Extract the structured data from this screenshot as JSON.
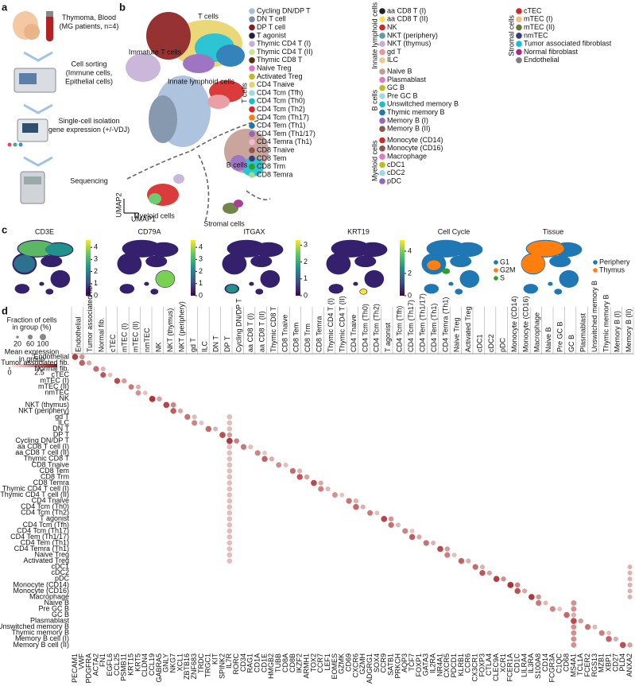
{
  "panel_labels": [
    "a",
    "b",
    "c",
    "d"
  ],
  "panel_a": {
    "steps": [
      {
        "lines": [
          "Thymoma, Blood",
          "(MG patients, n=4)"
        ]
      },
      {
        "lines": [
          "Cell sorting",
          "(Immune cells,",
          "Epithelial cells)"
        ]
      },
      {
        "lines": [
          "Single-cell isolation",
          "gene expression (+/-VDJ)"
        ]
      },
      {
        "lines": [
          "Sequencing"
        ]
      }
    ]
  },
  "panel_b": {
    "cluster_labels": [
      "T cells",
      "Immature T cells",
      "Innate lymphoid cells",
      "B cells",
      "Myeloid cells",
      "Stromal cells"
    ],
    "x_label": "UMAP1",
    "y_label": "UMAP2",
    "legend": [
      {
        "group": "T cells",
        "items": [
          {
            "name": "Cycling DN/DP T",
            "color": "#a6bddb"
          },
          {
            "name": "DN T cell",
            "color": "#7b8fa6"
          },
          {
            "name": "DP T cell",
            "color": "#8c1c1c"
          },
          {
            "name": "T agonist",
            "color": "#1f1f3f"
          },
          {
            "name": "Thymic CD4 T (I)",
            "color": "#c5b0d5"
          },
          {
            "name": "Thymic CD4 T (II)",
            "color": "#c9e59b"
          },
          {
            "name": "Thymic CD8 T",
            "color": "#5a2d0c"
          },
          {
            "name": "Naive Treg",
            "color": "#e377c2"
          },
          {
            "name": "Activated Treg",
            "color": "#bcbd22"
          },
          {
            "name": "CD4 Tnaive",
            "color": "#e8d36a"
          },
          {
            "name": "CD4 Tcm (Tfh)",
            "color": "#9edae5"
          },
          {
            "name": "CD4 Tcm (Th0)",
            "color": "#17becf"
          },
          {
            "name": "CD4 Tcm (Th2)",
            "color": "#d62728"
          },
          {
            "name": "CD4 Tcm (Th17)",
            "color": "#ff7f0e"
          },
          {
            "name": "CD4 Tem (Th1)",
            "color": "#1f77b4"
          },
          {
            "name": "CD4 Tem (Th1/17)",
            "color": "#9467bd"
          },
          {
            "name": "CD4 Temra (Th1)",
            "color": "#f7b6d2"
          },
          {
            "name": "CD8 Tnaive",
            "color": "#8c564b"
          },
          {
            "name": "CD8 Tem",
            "color": "#393b79"
          },
          {
            "name": "CD8 Trm",
            "color": "#2ca02c"
          },
          {
            "name": "CD8 Temra",
            "color": "#98df8a"
          }
        ]
      },
      {
        "group": "Innate lymphoid cells",
        "items": [
          {
            "name": "aa CD8 T (I)",
            "color": "#222222"
          },
          {
            "name": "aa CD8 T (II)",
            "color": "#ffdd57"
          },
          {
            "name": "NK",
            "color": "#d62728"
          },
          {
            "name": "NKT (periphery)",
            "color": "#5f9ea0"
          },
          {
            "name": "NKT (thymus)",
            "color": "#c5b0d5"
          },
          {
            "name": "gd T",
            "color": "#e7969c"
          },
          {
            "name": "ILC",
            "color": "#e7cb94"
          }
        ]
      },
      {
        "group": "B cells",
        "items": [
          {
            "name": "Naive B",
            "color": "#c49c94"
          },
          {
            "name": "Plasmablast",
            "color": "#e377c2"
          },
          {
            "name": "GC B",
            "color": "#bcbd22"
          },
          {
            "name": "Pre GC B",
            "color": "#9edae5"
          },
          {
            "name": "Unswitched memory B",
            "color": "#17becf"
          },
          {
            "name": "Thymic memory B",
            "color": "#1f77b4"
          },
          {
            "name": "Memory B (I)",
            "color": "#9467bd"
          },
          {
            "name": "Memory B (II)",
            "color": "#8c564b"
          }
        ]
      },
      {
        "group": "Myeloid cells",
        "items": [
          {
            "name": "Monocyte (CD14)",
            "color": "#d62728"
          },
          {
            "name": "Monocyte (CD16)",
            "color": "#8c564b"
          },
          {
            "name": "Macrophage",
            "color": "#e377c2"
          },
          {
            "name": "cDC1",
            "color": "#bcbd22"
          },
          {
            "name": "cDC2",
            "color": "#9edae5"
          },
          {
            "name": "pDC",
            "color": "#9467bd"
          }
        ]
      },
      {
        "group": "Stromal cells",
        "items": [
          {
            "name": "cTEC",
            "color": "#d62728"
          },
          {
            "name": "mTEC (I)",
            "color": "#ffbb78"
          },
          {
            "name": "mTEC (II)",
            "color": "#637939"
          },
          {
            "name": "nmTEC",
            "color": "#393b79"
          },
          {
            "name": "Tumor associated fibroblast",
            "color": "#17becf"
          },
          {
            "name": "Normal fibroblast",
            "color": "#a02c8d"
          },
          {
            "name": "Endothelial",
            "color": "#7f7f7f"
          }
        ]
      }
    ]
  },
  "panel_c": {
    "features": [
      {
        "title": "CD3E",
        "lim": [
          0,
          4.6
        ],
        "ticks": [
          0,
          1,
          2,
          3,
          4
        ]
      },
      {
        "title": "CD79A",
        "lim": [
          0,
          4.6
        ],
        "ticks": [
          0,
          1,
          2,
          3,
          4
        ]
      },
      {
        "title": "ITGAX",
        "lim": [
          0,
          3.3
        ],
        "ticks": [
          0,
          1,
          2,
          3
        ]
      },
      {
        "title": "KRT19",
        "lim": [
          0,
          5
        ],
        "ticks": [
          0,
          2,
          4
        ]
      }
    ],
    "categorical": [
      {
        "title": "Cell Cycle",
        "items": [
          {
            "name": "G1",
            "color": "#1f77b4"
          },
          {
            "name": "G2M",
            "color": "#ff7f0e"
          },
          {
            "name": "S",
            "color": "#2ca02c"
          }
        ]
      },
      {
        "title": "Tissue",
        "items": [
          {
            "name": "Periphery",
            "color": "#1f77b4"
          },
          {
            "name": "Thymus",
            "color": "#ff7f0e"
          }
        ]
      }
    ]
  },
  "panel_d": {
    "size_legend": {
      "title": [
        "Fraction of cells",
        "in group (%)"
      ],
      "ticks": [
        20,
        60,
        100
      ]
    },
    "color_legend": {
      "title": [
        "Mean expression",
        "in group"
      ],
      "lim": [
        0,
        4
      ],
      "ticks": [
        0,
        2.5
      ]
    },
    "columns": [
      "Endothelial",
      "Tumor associated fib.",
      "Normal fib.",
      "cTEC",
      "mTEC (I)",
      "mTEC (II)",
      "nmTEC",
      "NK",
      "NKT (thymus)",
      "NKT (periphery)",
      "gd T",
      "ILC",
      "DN T",
      "DP T",
      "Cycling DN/DP T",
      "aa CD8 T (I)",
      "aa CD8 T (II)",
      "Thymic CD8 T",
      "CD8 Tnaive",
      "CD8 Tem",
      "CD8 Trm",
      "CD8 Temra",
      "Thymic CD4 T (I)",
      "Thymic CD4 T (II)",
      "CD4 Tnaive",
      "CD4 Tcm (Th0)",
      "CD4 Tcm (Th2)",
      "T agonist",
      "CD4 Tcm (Tfh)",
      "CD4 Tcm (Th17)",
      "CD4 Tem (Th1/17)",
      "CD4 Tem (Th1)",
      "CD4 Temra (Th1)",
      "Naive Treg",
      "Activated Treg",
      "cDC1",
      "cDC2",
      "pDC",
      "Monocyte (CD14)",
      "Monocyte (CD16)",
      "Macrophage",
      "Naive B",
      "Pre GC B",
      "GC B",
      "Plasmablast",
      "Unswitched memory B",
      "Thymic memory B",
      "Memory B (I)",
      "Memory B (II)"
    ],
    "rows": [
      "Endothelial",
      "Tumor associated fib.",
      "Normal fib.",
      "cTEC",
      "mTEC (I)",
      "mTEC (II)",
      "nmTEC",
      "NK",
      "NKT (thymus)",
      "NKT (periphery)",
      "gd T",
      "ILC",
      "DN T",
      "DP T",
      "Cycling DN/DP T",
      "aa CD8 T cell (I)",
      "aa CD8 T cell (II)",
      "Thymic CD8 T",
      "CD8 Tnaive",
      "CD8 Tem",
      "CD8 Trm",
      "CD8 Temra",
      "Thymic CD4 T cell (I)",
      "Thymic CD4 T cell (II)",
      "CD4 Tnaive",
      "CD4 Tcm (Th0)",
      "CD4 Tcm (Th2)",
      "T agonist",
      "CD4 Tcm (Tfh)",
      "CD4 Tcm (Th17)",
      "CD4 Tem (Th1/17)",
      "CD4 Tem (Th1)",
      "CD4 Temra (Th1)",
      "Naive Treg",
      "Activated Treg",
      "cDC1",
      "cDC2",
      "pDC",
      "Monocyte (CD14)",
      "Monocyte (CD16)",
      "Macrophage",
      "Naive B",
      "Pre GC B",
      "GC B",
      "Plasmablast",
      "Unswitched memory B",
      "Thymic memory B",
      "Memory B cell (I)",
      "Memory B cell (II)"
    ],
    "genes": [
      "PECAM1",
      "VWF",
      "PDGFRA",
      "ACTA2",
      "FN1",
      "EGFL6",
      "CCL25",
      "PSMB11",
      "KRT15",
      "KRT5",
      "CLDN4",
      "CCL19",
      "GABRA5",
      "GNLY",
      "NKG7",
      "XCL1",
      "ZBTB16",
      "ZNF683",
      "TRDC",
      "TRGC1",
      "KIT",
      "SPINK2",
      "IL7R",
      "RORC",
      "CD34",
      "RAG1",
      "CD1A",
      "CD1E",
      "HMGB2",
      "TUBB",
      "CD8A",
      "CD8B",
      "IKZF2",
      "ARMH1",
      "TOX2",
      "CCR7",
      "LEF1",
      "EOMES",
      "GZMK",
      "CD69",
      "CXCR6",
      "GZMH",
      "ADGRG1",
      "SOX4",
      "CCR9",
      "SATB1",
      "PRKCH",
      "AQP3",
      "TCF7",
      "FOXP1",
      "GATA3",
      "IL2RA",
      "NR4A1",
      "CXCR5",
      "PDCD1",
      "KLRB1",
      "CCR6",
      "CX3CR1",
      "FOXP3",
      "CTLA4",
      "CLEC9A",
      "XCR1",
      "FCER1A",
      "CD1C",
      "LILRA4",
      "IL3RA",
      "S100A8",
      "CD14",
      "FCGR3A",
      "C1QC",
      "CD68",
      "MS4A1",
      "TCL1A",
      "FCER2",
      "RGS13",
      "MZB1",
      "XBP1",
      "CD27",
      "PLD4",
      "ANXA2"
    ],
    "dots": [
      [
        0,
        0,
        90,
        3.2
      ],
      [
        0,
        1,
        60,
        1.8
      ],
      [
        1,
        1,
        85,
        2.6
      ],
      [
        1,
        2,
        55,
        1.4
      ],
      [
        2,
        3,
        80,
        2.4
      ],
      [
        2,
        4,
        50,
        1.2
      ],
      [
        3,
        4,
        75,
        2.8
      ],
      [
        3,
        5,
        45,
        1.0
      ],
      [
        4,
        6,
        85,
        3.0
      ],
      [
        4,
        7,
        60,
        1.6
      ],
      [
        5,
        8,
        70,
        2.2
      ],
      [
        5,
        9,
        50,
        1.3
      ],
      [
        6,
        9,
        65,
        1.8
      ],
      [
        6,
        10,
        45,
        0.9
      ],
      [
        7,
        11,
        95,
        3.4
      ],
      [
        7,
        12,
        60,
        1.5
      ],
      [
        8,
        13,
        90,
        3.1
      ],
      [
        8,
        14,
        65,
        2.0
      ],
      [
        9,
        14,
        85,
        2.7
      ],
      [
        9,
        15,
        55,
        1.4
      ],
      [
        10,
        16,
        80,
        2.3
      ],
      [
        10,
        17,
        50,
        1.1
      ],
      [
        11,
        17,
        75,
        2.0
      ],
      [
        11,
        18,
        45,
        0.9
      ],
      [
        12,
        19,
        85,
        2.5
      ],
      [
        12,
        20,
        50,
        1.2
      ],
      [
        13,
        21,
        90,
        2.9
      ],
      [
        13,
        22,
        60,
        1.6
      ],
      [
        14,
        22,
        95,
        3.3
      ],
      [
        14,
        23,
        65,
        2.1
      ],
      [
        15,
        24,
        80,
        2.2
      ],
      [
        15,
        25,
        50,
        1.0
      ],
      [
        16,
        26,
        75,
        2.0
      ],
      [
        16,
        27,
        45,
        0.8
      ],
      [
        17,
        27,
        85,
        2.6
      ],
      [
        17,
        28,
        55,
        1.3
      ],
      [
        18,
        29,
        70,
        1.9
      ],
      [
        18,
        30,
        50,
        1.0
      ],
      [
        19,
        31,
        80,
        2.4
      ],
      [
        19,
        32,
        55,
        1.2
      ],
      [
        20,
        32,
        85,
        2.8
      ],
      [
        20,
        33,
        60,
        1.5
      ],
      [
        21,
        34,
        90,
        3.0
      ],
      [
        21,
        35,
        55,
        1.4
      ],
      [
        22,
        35,
        75,
        2.1
      ],
      [
        22,
        36,
        50,
        1.1
      ],
      [
        23,
        37,
        70,
        1.8
      ],
      [
        23,
        38,
        45,
        0.9
      ],
      [
        24,
        39,
        80,
        2.3
      ],
      [
        24,
        40,
        55,
        1.2
      ],
      [
        25,
        40,
        85,
        2.5
      ],
      [
        25,
        41,
        50,
        1.3
      ],
      [
        26,
        42,
        75,
        2.2
      ],
      [
        26,
        43,
        45,
        1.0
      ],
      [
        27,
        44,
        90,
        3.1
      ],
      [
        27,
        45,
        60,
        1.7
      ],
      [
        28,
        45,
        80,
        2.4
      ],
      [
        28,
        46,
        50,
        1.1
      ],
      [
        29,
        47,
        75,
        2.0
      ],
      [
        29,
        48,
        45,
        0.9
      ],
      [
        30,
        48,
        85,
        2.7
      ],
      [
        30,
        49,
        55,
        1.4
      ],
      [
        31,
        50,
        80,
        2.3
      ],
      [
        31,
        51,
        50,
        1.2
      ],
      [
        32,
        52,
        90,
        3.0
      ],
      [
        32,
        53,
        60,
        1.6
      ],
      [
        33,
        53,
        75,
        2.1
      ],
      [
        33,
        54,
        45,
        1.0
      ],
      [
        34,
        55,
        85,
        2.6
      ],
      [
        34,
        56,
        55,
        1.3
      ],
      [
        35,
        57,
        80,
        2.4
      ],
      [
        35,
        58,
        50,
        1.2
      ],
      [
        36,
        58,
        85,
        2.8
      ],
      [
        36,
        59,
        55,
        1.5
      ],
      [
        37,
        60,
        90,
        3.2
      ],
      [
        37,
        61,
        60,
        1.8
      ],
      [
        38,
        62,
        95,
        3.4
      ],
      [
        38,
        63,
        65,
        2.0
      ],
      [
        39,
        63,
        85,
        2.9
      ],
      [
        39,
        64,
        55,
        1.4
      ],
      [
        40,
        65,
        90,
        3.3
      ],
      [
        40,
        66,
        60,
        1.7
      ],
      [
        41,
        66,
        80,
        2.2
      ],
      [
        41,
        67,
        50,
        1.1
      ],
      [
        42,
        68,
        75,
        2.0
      ],
      [
        42,
        69,
        45,
        0.9
      ],
      [
        43,
        70,
        85,
        2.5
      ],
      [
        43,
        71,
        55,
        1.3
      ],
      [
        44,
        71,
        90,
        3.0
      ],
      [
        44,
        72,
        60,
        1.6
      ],
      [
        45,
        73,
        80,
        2.3
      ],
      [
        45,
        74,
        50,
        1.1
      ],
      [
        46,
        75,
        75,
        2.1
      ],
      [
        46,
        76,
        45,
        1.0
      ],
      [
        47,
        76,
        85,
        2.6
      ],
      [
        47,
        77,
        55,
        1.3
      ],
      [
        48,
        78,
        90,
        2.9
      ],
      [
        48,
        79,
        60,
        1.5
      ],
      [
        10,
        22,
        60,
        1.0
      ],
      [
        11,
        22,
        60,
        1.0
      ],
      [
        12,
        22,
        60,
        1.0
      ],
      [
        15,
        22,
        60,
        1.0
      ],
      [
        16,
        22,
        60,
        1.0
      ],
      [
        17,
        22,
        60,
        1.0
      ],
      [
        18,
        22,
        60,
        1.0
      ],
      [
        19,
        22,
        60,
        1.0
      ],
      [
        20,
        22,
        60,
        1.0
      ],
      [
        21,
        22,
        60,
        1.0
      ],
      [
        22,
        22,
        60,
        1.0
      ],
      [
        23,
        22,
        60,
        1.0
      ],
      [
        24,
        22,
        60,
        1.0
      ],
      [
        25,
        22,
        60,
        1.0
      ],
      [
        26,
        22,
        60,
        1.0
      ],
      [
        27,
        22,
        60,
        1.0
      ],
      [
        28,
        22,
        60,
        1.0
      ],
      [
        29,
        22,
        60,
        1.0
      ],
      [
        30,
        22,
        60,
        1.0
      ],
      [
        31,
        22,
        60,
        1.0
      ],
      [
        32,
        22,
        60,
        1.0
      ],
      [
        33,
        22,
        60,
        1.0
      ],
      [
        34,
        22,
        60,
        1.0
      ],
      [
        35,
        79,
        50,
        1.2
      ],
      [
        36,
        79,
        50,
        1.2
      ],
      [
        37,
        79,
        50,
        1.2
      ],
      [
        38,
        79,
        50,
        1.2
      ],
      [
        39,
        79,
        50,
        1.2
      ],
      [
        40,
        79,
        50,
        1.2
      ],
      [
        41,
        71,
        70,
        1.8
      ],
      [
        42,
        71,
        70,
        1.8
      ],
      [
        45,
        71,
        70,
        1.8
      ],
      [
        46,
        71,
        70,
        1.8
      ],
      [
        47,
        71,
        70,
        1.8
      ],
      [
        48,
        71,
        70,
        1.8
      ]
    ]
  }
}
